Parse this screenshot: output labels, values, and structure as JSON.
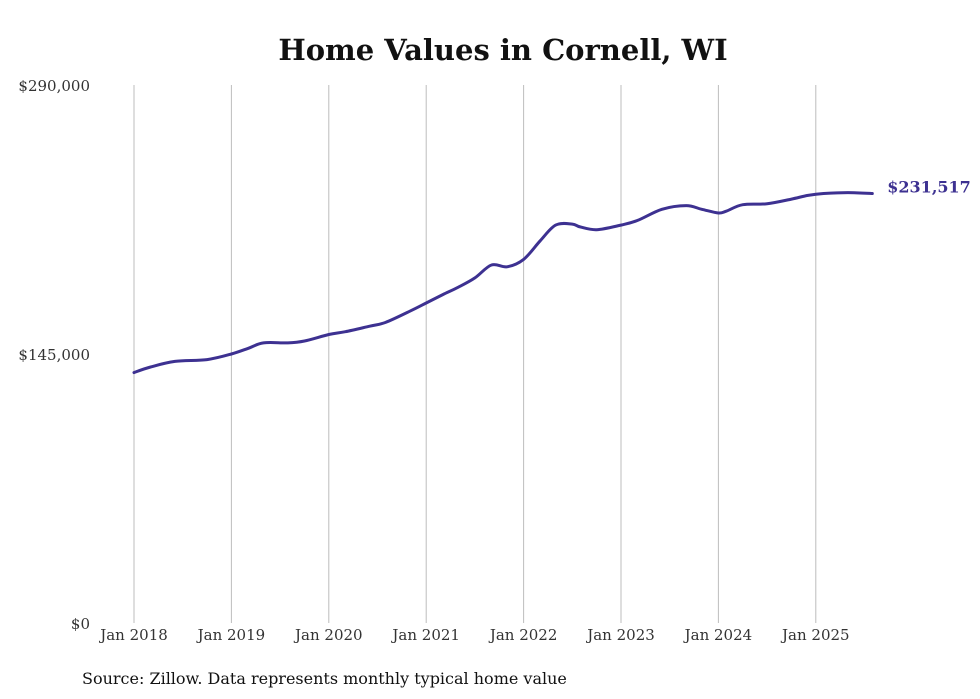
{
  "chart_data": {
    "type": "line",
    "title": "Home Values in Cornell, WI",
    "xlabel": "",
    "ylabel": "",
    "ylim": [
      0,
      290000
    ],
    "y_ticks": [
      {
        "value": 0,
        "label": "$0"
      },
      {
        "value": 145000,
        "label": "$145,000"
      },
      {
        "value": 290000,
        "label": "$290,000"
      }
    ],
    "x_ticks": [
      {
        "value": 2018,
        "label": "Jan 2018"
      },
      {
        "value": 2019,
        "label": "Jan 2019"
      },
      {
        "value": 2020,
        "label": "Jan 2020"
      },
      {
        "value": 2021,
        "label": "Jan 2021"
      },
      {
        "value": 2022,
        "label": "Jan 2022"
      },
      {
        "value": 2023,
        "label": "Jan 2023"
      },
      {
        "value": 2024,
        "label": "Jan 2024"
      },
      {
        "value": 2025,
        "label": "Jan 2025"
      }
    ],
    "xlim": [
      2017.8,
      2026.1
    ],
    "grid": "vertical",
    "series": [
      {
        "name": "Typical home value",
        "color": "#3d3191",
        "x": [
          2018.0,
          2018.17,
          2018.42,
          2018.75,
          2019.0,
          2019.17,
          2019.33,
          2019.58,
          2019.75,
          2020.0,
          2020.17,
          2020.42,
          2020.58,
          2020.83,
          2021.0,
          2021.17,
          2021.33,
          2021.5,
          2021.67,
          2021.83,
          2022.0,
          2022.17,
          2022.33,
          2022.5,
          2022.58,
          2022.75,
          2023.0,
          2023.17,
          2023.42,
          2023.67,
          2023.83,
          2024.0,
          2024.08,
          2024.25,
          2024.5,
          2024.75,
          2024.92,
          2025.08,
          2025.33,
          2025.58
        ],
        "values": [
          135000,
          138000,
          141000,
          142000,
          145000,
          148000,
          151000,
          151000,
          152000,
          155500,
          157000,
          160000,
          162000,
          168000,
          172500,
          177000,
          181000,
          186000,
          193000,
          192000,
          196000,
          206000,
          214500,
          215000,
          213500,
          212000,
          214500,
          217000,
          223000,
          225000,
          223000,
          221000,
          222000,
          225500,
          226000,
          228500,
          230500,
          231500,
          232000,
          231517
        ]
      }
    ],
    "end_label": "$231,517"
  },
  "footer": {
    "source": "Source: Zillow. Data represents monthly typical home value"
  }
}
